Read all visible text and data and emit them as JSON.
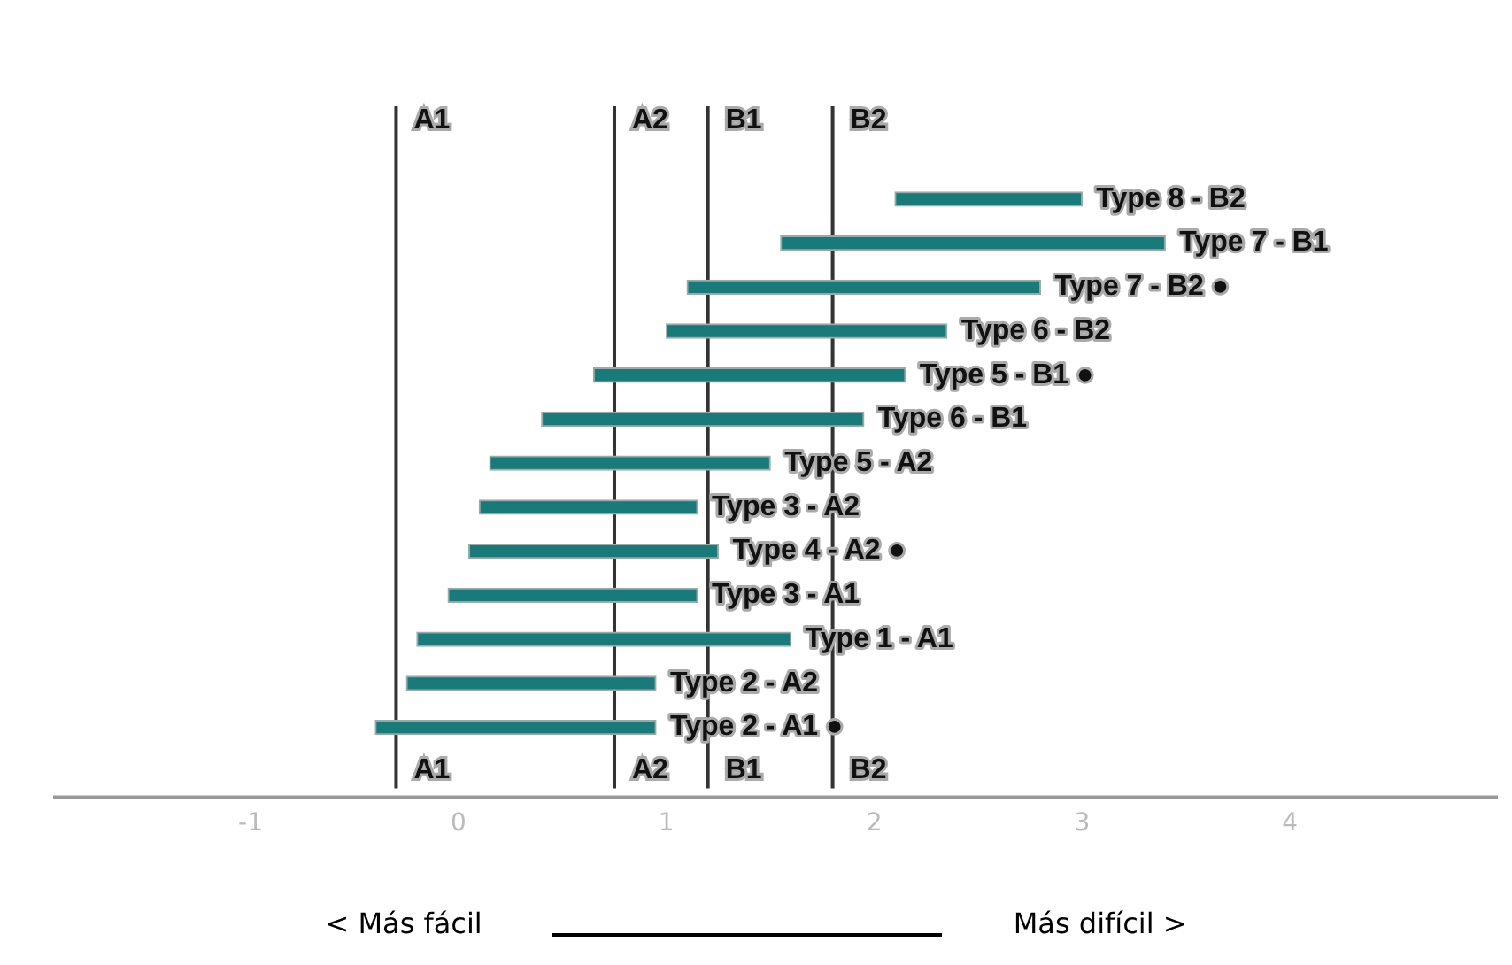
{
  "chart_data": {
    "type": "bar",
    "orientation": "horizontal",
    "categories": [
      "Type 8 - B2",
      "Type 7 - B1",
      "Type 7 - B2 ●",
      "Type 6 - B2",
      "Type 5 - B1 ●",
      "Type 6 - B1",
      "Type 5 - A2",
      "Type 3 - A2",
      "Type 4 - A2 ●",
      "Type 3 - A1",
      "Type 1 - A1",
      "Type 2 - A2",
      "Type 2 - A1 ●"
    ],
    "base": [
      2.1,
      1.55,
      1.1,
      1.0,
      0.65,
      0.4,
      0.15,
      0.1,
      0.05,
      -0.05,
      -0.2,
      -0.25,
      -0.4
    ],
    "values": [
      0.9,
      1.85,
      1.7,
      1.35,
      1.5,
      1.55,
      1.35,
      1.05,
      1.2,
      1.2,
      1.8,
      1.2,
      1.35
    ],
    "color": "#1a7a7a",
    "xlim": [
      -1.95,
      5.0
    ],
    "xticks": [
      -1,
      0,
      1,
      2,
      3,
      4
    ],
    "grid": false,
    "legend": false,
    "ref_lines": [
      {
        "axis": "x",
        "value": -0.3,
        "label": "A1",
        "color": "#333333"
      },
      {
        "axis": "x",
        "value": 0.75,
        "label": "A2",
        "color": "#333333"
      },
      {
        "axis": "x",
        "value": 1.2,
        "label": "B1",
        "color": "#333333"
      },
      {
        "axis": "x",
        "value": 1.8,
        "label": "B2",
        "color": "#333333"
      }
    ],
    "annotations": [
      "< Más fácil",
      "Más difícil >"
    ]
  }
}
